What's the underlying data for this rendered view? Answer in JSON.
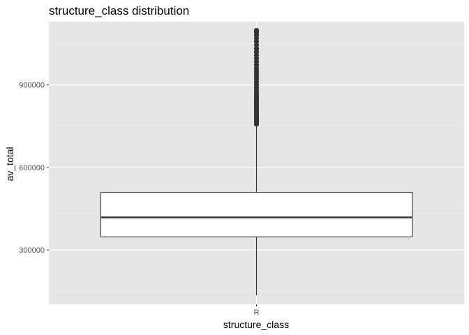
{
  "chart_data": {
    "type": "boxplot",
    "title": "structure_class  distribution",
    "xlabel": "structure_class",
    "ylabel": "av_total",
    "categories": [
      "R"
    ],
    "ylim": [
      102000,
      1130000
    ],
    "yticks": [
      300000,
      600000,
      900000
    ],
    "ytick_labels": [
      "300000",
      "600000",
      "900000"
    ],
    "grid": true,
    "legend": "none",
    "boxes": [
      {
        "category": "R",
        "whisker_low": 135000,
        "q1": 347000,
        "median": 418000,
        "q3": 509000,
        "whisker_high": 754000,
        "outliers": [
          757000,
          765000,
          772000,
          780000,
          788000,
          795000,
          803000,
          811000,
          820000,
          828000,
          836000,
          845000,
          853000,
          862000,
          870000,
          880000,
          890000,
          900000,
          910000,
          920000,
          930000,
          940000,
          950000,
          960000,
          972000,
          984000,
          996000,
          1008000,
          1020000,
          1032000,
          1045000,
          1058000,
          1070000,
          1082000,
          1092000,
          1098000
        ]
      }
    ],
    "colors": {
      "panel_background": "#e5e5e5",
      "grid_major": "#ffffff",
      "grid_minor": "#f2f2f2",
      "box_fill": "#ffffff",
      "box_line": "#333333",
      "outlier": "#333333",
      "tick_text": "#4d4d4d"
    }
  }
}
